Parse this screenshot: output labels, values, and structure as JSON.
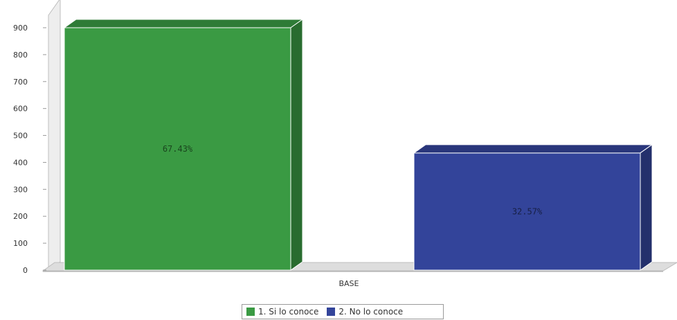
{
  "chart_data": {
    "type": "bar",
    "categories": [
      "BASE"
    ],
    "series": [
      {
        "name": "1. Si lo conoce",
        "values": [
          900
        ],
        "label": "67.43%",
        "color": "#3a9a43"
      },
      {
        "name": "2. No lo conoce",
        "values": [
          435
        ],
        "label": "32.57%",
        "color": "#33449a"
      }
    ],
    "yticks": [
      0,
      100,
      200,
      300,
      400,
      500,
      600,
      700,
      800,
      900
    ],
    "ylim": [
      0,
      900
    ],
    "grid": false,
    "three_d": true,
    "legend_position": "bottom-center"
  }
}
